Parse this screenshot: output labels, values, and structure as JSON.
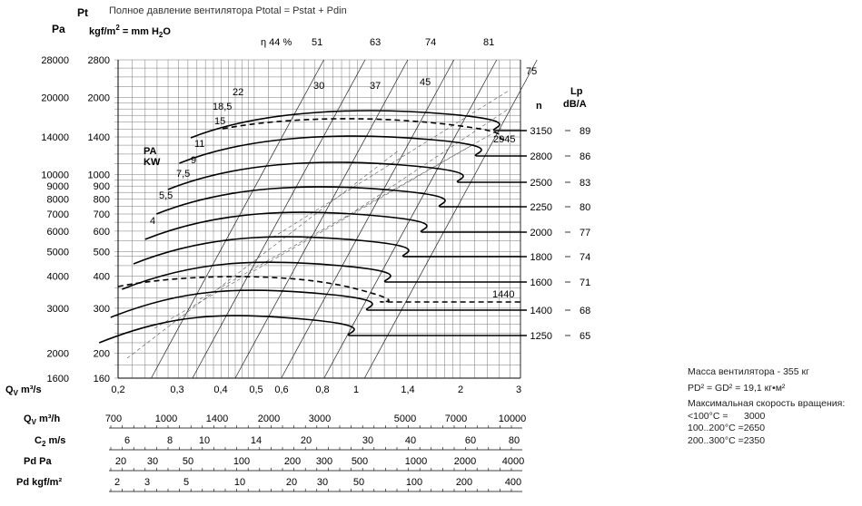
{
  "title": "Полное давление вентилятора Ptotal = Pstat + Pdin",
  "headings": {
    "pt": "Pt",
    "pa": "Pa",
    "kgf_pre": "kgf/m",
    "kgf_sup": "2",
    "kgf_mid": " = mm H",
    "kgf_sub": "2",
    "kgf_post": "O",
    "pa_kw_1": "PA",
    "pa_kw_2": "KW",
    "n": "n",
    "lp_1": "Lp",
    "lp_2": "dB/A"
  },
  "specs": {
    "mass": "Масса вентилятора - 355 кг",
    "pd2": "PD² = GD² = 19,1 кг•м²",
    "max_speed_title": "Максимальная скорость вращения:",
    "speeds": [
      {
        "range": "<100°C =",
        "value": "3000"
      },
      {
        "range": "100..200°C =",
        "value": "2650"
      },
      {
        "range": "200..300°C =",
        "value": "2350"
      }
    ]
  },
  "chart_data": {
    "type": "line",
    "x_scale": "log",
    "y_scale": "log",
    "xlim": [
      0.2,
      3
    ],
    "ylim": [
      1600,
      28000
    ],
    "y_ticks_pa": [
      "28000",
      "20000",
      "14000",
      "10000",
      "9000",
      "8000",
      "7000",
      "6000",
      "5000",
      "4000",
      "3000",
      "2000",
      "1600"
    ],
    "y_ticks_kgf": [
      "2800",
      "2000",
      "1400",
      "1000",
      "900",
      "800",
      "700",
      "600",
      "500",
      "400",
      "300",
      "200",
      "160"
    ],
    "efficiency_labels": [
      "η 44 %",
      "51",
      "63",
      "74",
      "81",
      "75"
    ],
    "power_labels": [
      "22",
      "30",
      "37",
      "45",
      "18,5",
      "15",
      "11",
      "9",
      "7,5",
      "5,5",
      "4"
    ],
    "speed_labels": [
      "2945",
      "1440"
    ],
    "speed_rpm": [
      "3150",
      "2800",
      "2500",
      "2250",
      "2000",
      "1800",
      "1600",
      "1400",
      "1250"
    ],
    "noise_dba": [
      "89",
      "86",
      "83",
      "80",
      "77",
      "74",
      "71",
      "68",
      "65"
    ],
    "scales": [
      {
        "label": "Q",
        "sub": "V",
        "unit": " m³/s",
        "ticks": [
          "0,2",
          "0,3",
          "0,4",
          "0,5",
          "0,6",
          "0,8",
          "1",
          "1,4",
          "2",
          "3"
        ]
      },
      {
        "label": "Q",
        "sub": "V",
        "unit": " m³/h",
        "ticks": [
          "700",
          "1000",
          "1400",
          "2000",
          "3000",
          "5000",
          "7000",
          "10000"
        ]
      },
      {
        "label": "C",
        "sub": "2",
        "unit": " m/s",
        "ticks": [
          "6",
          "8",
          "10",
          "14",
          "20",
          "30",
          "40",
          "60",
          "80"
        ]
      },
      {
        "label": "Pd Pa",
        "sub": "",
        "unit": "",
        "ticks": [
          "20",
          "30",
          "50",
          "100",
          "200",
          "300",
          "500",
          "1000",
          "2000",
          "4000"
        ]
      },
      {
        "label": "Pd kgf/m²",
        "sub": "",
        "unit": "",
        "ticks": [
          "2",
          "3",
          "5",
          "10",
          "20",
          "30",
          "50",
          "100",
          "200",
          "400"
        ]
      }
    ]
  }
}
